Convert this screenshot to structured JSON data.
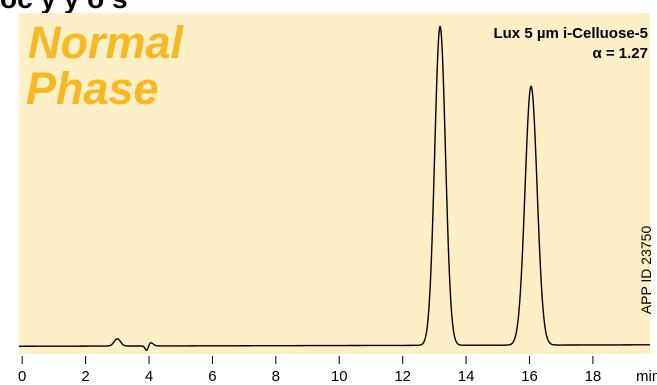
{
  "colors": {
    "background_band": "#fdefc6",
    "phase_text": "#f9b721",
    "trace": "#000000",
    "text": "#000000"
  },
  "heading_cut": "oc    y   y   o  s",
  "phase_label": {
    "line1": "Normal",
    "line2": "Phase"
  },
  "app_id": "APP ID 23750",
  "chart_data": {
    "type": "line",
    "xlabel": "min",
    "ylabel": "",
    "xlim": [
      -0.1,
      19.8
    ],
    "ylim": [
      -0.8,
      34.5
    ],
    "x_ticks": [
      0,
      2,
      4,
      6,
      8,
      10,
      12,
      14,
      16,
      18
    ],
    "grid": false,
    "legend": "none",
    "annotations": [
      {
        "text": "Lux 5 µm i-Celluose-5",
        "placement": "top-right"
      },
      {
        "text": "α = 1.27",
        "placement": "top-right"
      }
    ],
    "series": [
      {
        "baseline": 0.0,
        "drift": 0.15,
        "peaks": [
          {
            "rt": 3.0,
            "height": 0.75,
            "width": 0.1
          },
          {
            "rt": 3.93,
            "height": -0.55,
            "width": 0.05
          },
          {
            "rt": 4.05,
            "height": 0.35,
            "width": 0.08
          },
          {
            "rt": 13.18,
            "height": 33.0,
            "width": 0.17
          },
          {
            "rt": 16.05,
            "height": 26.8,
            "width": 0.19
          }
        ]
      }
    ]
  }
}
